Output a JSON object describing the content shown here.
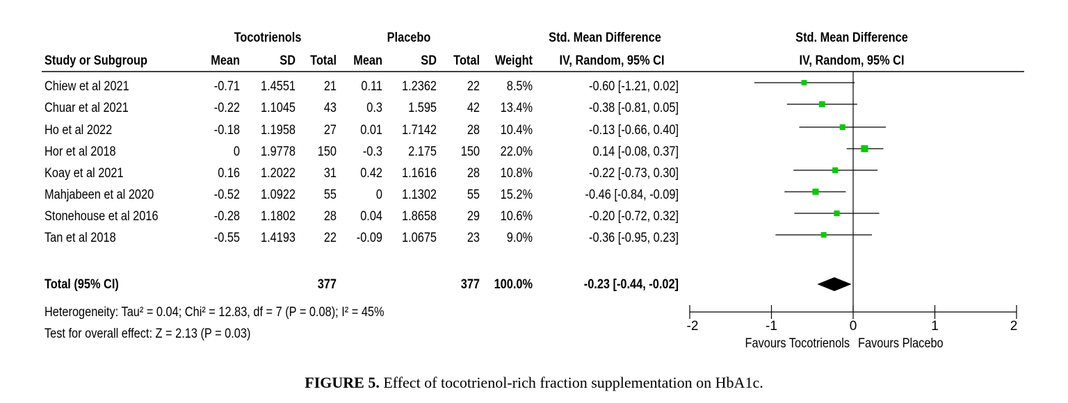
{
  "header": {
    "group1": "Tocotrienols",
    "group2": "Placebo",
    "smd_title": "Std. Mean Difference",
    "smd_method": "IV, Random, 95% CI",
    "plot_title": "Std. Mean Difference",
    "plot_method": "IV, Random, 95% CI",
    "col_study": "Study or Subgroup",
    "col_mean1": "Mean",
    "col_sd1": "SD",
    "col_total1": "Total",
    "col_mean2": "Mean",
    "col_sd2": "SD",
    "col_total2": "Total",
    "col_weight": "Weight"
  },
  "studies": [
    {
      "name": "Chiew et al 2021",
      "mean1": "-0.71",
      "sd1": "1.4551",
      "total1": "21",
      "mean2": "0.11",
      "sd2": "1.2362",
      "total2": "22",
      "weight": "8.5%",
      "ci_text": "-0.60 [-1.21, 0.02]"
    },
    {
      "name": "Chuar et al 2021",
      "mean1": "-0.22",
      "sd1": "1.1045",
      "total1": "43",
      "mean2": "0.3",
      "sd2": "1.595",
      "total2": "42",
      "weight": "13.4%",
      "ci_text": "-0.38 [-0.81, 0.05]"
    },
    {
      "name": "Ho et al 2022",
      "mean1": "-0.18",
      "sd1": "1.1958",
      "total1": "27",
      "mean2": "0.01",
      "sd2": "1.7142",
      "total2": "28",
      "weight": "10.4%",
      "ci_text": "-0.13 [-0.66, 0.40]"
    },
    {
      "name": "Hor et al 2018",
      "mean1": "0",
      "sd1": "1.9778",
      "total1": "150",
      "mean2": "-0.3",
      "sd2": "2.175",
      "total2": "150",
      "weight": "22.0%",
      "ci_text": "0.14 [-0.08, 0.37]"
    },
    {
      "name": "Koay et al 2021",
      "mean1": "0.16",
      "sd1": "1.2022",
      "total1": "31",
      "mean2": "0.42",
      "sd2": "1.1616",
      "total2": "28",
      "weight": "10.8%",
      "ci_text": "-0.22 [-0.73, 0.30]"
    },
    {
      "name": "Mahjabeen et al 2020",
      "mean1": "-0.52",
      "sd1": "1.0922",
      "total1": "55",
      "mean2": "0",
      "sd2": "1.1302",
      "total2": "55",
      "weight": "15.2%",
      "ci_text": "-0.46 [-0.84, -0.09]"
    },
    {
      "name": "Stonehouse et al 2016",
      "mean1": "-0.28",
      "sd1": "1.1802",
      "total1": "28",
      "mean2": "0.04",
      "sd2": "1.8658",
      "total2": "29",
      "weight": "10.6%",
      "ci_text": "-0.20 [-0.72, 0.32]"
    },
    {
      "name": "Tan et al 2018",
      "mean1": "-0.55",
      "sd1": "1.4193",
      "total1": "22",
      "mean2": "-0.09",
      "sd2": "1.0675",
      "total2": "23",
      "weight": "9.0%",
      "ci_text": "-0.36 [-0.95, 0.23]"
    }
  ],
  "total": {
    "label": "Total (95% CI)",
    "total1": "377",
    "total2": "377",
    "weight": "100.0%",
    "ci_text": "-0.23 [-0.44, -0.02]"
  },
  "heterogeneity": "Heterogeneity: Tau² = 0.04; Chi² = 12.83, df = 7 (P = 0.08); I² = 45%",
  "overall_effect": "Test for overall effect: Z = 2.13 (P = 0.03)",
  "caption": {
    "label": "FIGURE 5.",
    "text": "Effect of tocotrienol-rich fraction supplementation on HbA1c."
  },
  "chart_data": {
    "type": "forest",
    "x_range": [
      -2,
      2
    ],
    "x_ticks": [
      "-2",
      "-1",
      "0",
      "1",
      "2"
    ],
    "favours_left": "Favours Tocotrienols",
    "favours_right": "Favours Placebo",
    "point_color": "#00cc00",
    "diamond_color": "#000000",
    "studies": [
      {
        "estimate": -0.6,
        "lower": -1.21,
        "upper": 0.02,
        "weight": 8.5
      },
      {
        "estimate": -0.38,
        "lower": -0.81,
        "upper": 0.05,
        "weight": 13.4
      },
      {
        "estimate": -0.13,
        "lower": -0.66,
        "upper": 0.4,
        "weight": 10.4
      },
      {
        "estimate": 0.14,
        "lower": -0.08,
        "upper": 0.37,
        "weight": 22.0
      },
      {
        "estimate": -0.22,
        "lower": -0.73,
        "upper": 0.3,
        "weight": 10.8
      },
      {
        "estimate": -0.46,
        "lower": -0.84,
        "upper": -0.09,
        "weight": 15.2
      },
      {
        "estimate": -0.2,
        "lower": -0.72,
        "upper": 0.32,
        "weight": 10.6
      },
      {
        "estimate": -0.36,
        "lower": -0.95,
        "upper": 0.23,
        "weight": 9.0
      }
    ],
    "pooled": {
      "estimate": -0.23,
      "lower": -0.44,
      "upper": -0.02
    }
  }
}
